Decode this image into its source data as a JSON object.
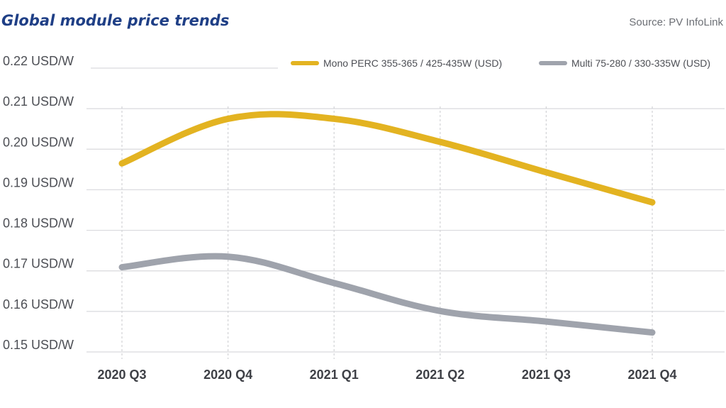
{
  "chart_data": {
    "type": "line",
    "title": "Global module price trends",
    "source": "Source: PV InfoLink",
    "categories": [
      "2020 Q3",
      "2020 Q4",
      "2021 Q1",
      "2021 Q2",
      "2021 Q3",
      "2021 Q4"
    ],
    "yticks": [
      0.15,
      0.16,
      0.17,
      0.18,
      0.19,
      0.2,
      0.21,
      0.22
    ],
    "ytick_labels": [
      "0.15 USD/W",
      "0.16 USD/W",
      "0.17 USD/W",
      "0.18 USD/W",
      "0.19 USD/W",
      "0.20 USD/W",
      "0.21 USD/W",
      "0.22 USD/W"
    ],
    "ylim": [
      0.15,
      0.22
    ],
    "grid": "horizontal",
    "legend_position": "top",
    "series": [
      {
        "name": "Mono PERC 355-365 / 425-435W (USD)",
        "color": "#e3b321",
        "values": [
          0.1965,
          0.2075,
          0.2075,
          0.2018,
          0.1943,
          0.1869
        ]
      },
      {
        "name": "Multi 75-280 / 330-335W (USD)",
        "color": "#9fa3ac",
        "values": [
          0.1709,
          0.1735,
          0.167,
          0.1601,
          0.1575,
          0.1548
        ]
      }
    ]
  }
}
